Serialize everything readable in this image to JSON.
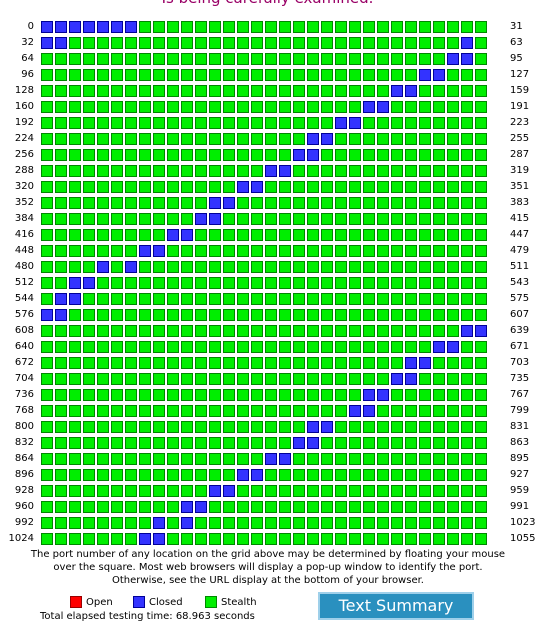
{
  "caption": "Is being carefully examined.",
  "legend": {
    "open_label": "Open",
    "closed_label": "Closed",
    "stealth_label": "Stealth",
    "open_color": "#ff0000",
    "closed_color": "#3333ff",
    "stealth_color": "#00ee00"
  },
  "description": "The port number of any location on the grid above may be determined by floating your mouse over the square. Most web browsers will display a pop-up window to identify the port. Otherwise, see the URL display at the bottom of your browser.",
  "elapsed_text": "Total elapsed testing time: 68.963 seconds",
  "text_summary_label": "Text Summary",
  "grid": {
    "ports_per_row": 32,
    "rows": [
      {
        "start": 0,
        "end": 31,
        "closed": [
          0,
          1,
          2,
          3,
          4,
          5,
          6
        ]
      },
      {
        "start": 32,
        "end": 63,
        "closed": [
          0,
          1,
          30
        ]
      },
      {
        "start": 64,
        "end": 95,
        "closed": [
          29,
          30
        ]
      },
      {
        "start": 96,
        "end": 127,
        "closed": [
          27,
          28
        ]
      },
      {
        "start": 128,
        "end": 159,
        "closed": [
          25,
          26
        ]
      },
      {
        "start": 160,
        "end": 191,
        "closed": [
          23,
          24
        ]
      },
      {
        "start": 192,
        "end": 223,
        "closed": [
          21,
          22
        ]
      },
      {
        "start": 224,
        "end": 255,
        "closed": [
          19,
          20
        ]
      },
      {
        "start": 256,
        "end": 287,
        "closed": [
          18,
          19
        ]
      },
      {
        "start": 288,
        "end": 319,
        "closed": [
          16,
          17
        ]
      },
      {
        "start": 320,
        "end": 351,
        "closed": [
          14,
          15
        ]
      },
      {
        "start": 352,
        "end": 383,
        "closed": [
          12,
          13
        ]
      },
      {
        "start": 384,
        "end": 415,
        "closed": [
          11,
          12
        ]
      },
      {
        "start": 416,
        "end": 447,
        "closed": [
          9,
          10
        ]
      },
      {
        "start": 448,
        "end": 479,
        "closed": [
          7,
          8
        ]
      },
      {
        "start": 480,
        "end": 511,
        "closed": [
          4,
          6
        ]
      },
      {
        "start": 512,
        "end": 543,
        "closed": [
          2,
          3
        ]
      },
      {
        "start": 544,
        "end": 575,
        "closed": [
          1,
          2
        ]
      },
      {
        "start": 576,
        "end": 607,
        "closed": [
          0,
          1
        ]
      },
      {
        "start": 608,
        "end": 639,
        "closed": [
          30,
          31
        ]
      },
      {
        "start": 640,
        "end": 671,
        "closed": [
          28,
          29
        ]
      },
      {
        "start": 672,
        "end": 703,
        "closed": [
          26,
          27
        ]
      },
      {
        "start": 704,
        "end": 735,
        "closed": [
          25,
          26
        ]
      },
      {
        "start": 736,
        "end": 767,
        "closed": [
          23,
          24
        ]
      },
      {
        "start": 768,
        "end": 799,
        "closed": [
          22,
          23
        ]
      },
      {
        "start": 800,
        "end": 831,
        "closed": [
          19,
          20
        ]
      },
      {
        "start": 832,
        "end": 863,
        "closed": [
          18,
          19
        ]
      },
      {
        "start": 864,
        "end": 895,
        "closed": [
          16,
          17
        ]
      },
      {
        "start": 896,
        "end": 927,
        "closed": [
          14,
          15
        ]
      },
      {
        "start": 928,
        "end": 959,
        "closed": [
          12,
          13
        ]
      },
      {
        "start": 960,
        "end": 991,
        "closed": [
          10,
          11
        ]
      },
      {
        "start": 992,
        "end": 1023,
        "closed": [
          8,
          10
        ]
      },
      {
        "start": 1024,
        "end": 1055,
        "closed": [
          7,
          8
        ]
      }
    ]
  }
}
